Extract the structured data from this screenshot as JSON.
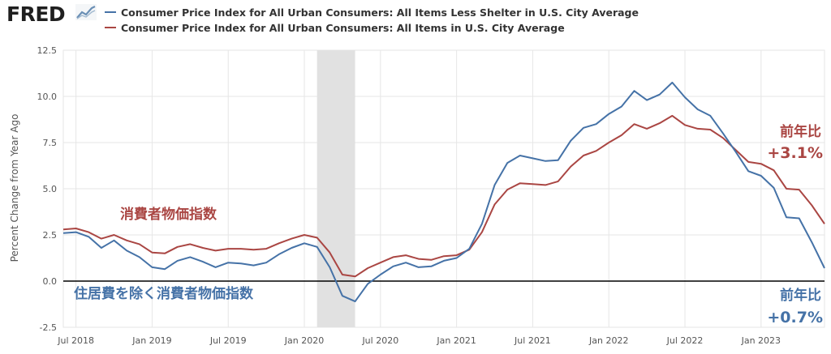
{
  "header": {
    "logo_text": "FRED",
    "logo_icon": "fred-chart-icon"
  },
  "colors": {
    "series_blue": "#4572a7",
    "series_red": "#aa4643",
    "recession": "#e1e1e1",
    "zero_line": "#000000",
    "grid": "#e6e6e6"
  },
  "chart_data": {
    "type": "line",
    "ylabel": "Percent Change from Year Ago",
    "ylim": [
      -2.5,
      12.5
    ],
    "yticks": [
      12.5,
      10.0,
      7.5,
      5.0,
      2.5,
      0.0,
      -2.5
    ],
    "ytick_labels": [
      "12.5",
      "10.0",
      "7.5",
      "5.0",
      "2.5",
      "0.0",
      "-2.5"
    ],
    "xlim": [
      "2018-06",
      "2023-06"
    ],
    "xticks": [
      "2018-07",
      "2019-01",
      "2019-07",
      "2020-01",
      "2020-07",
      "2021-01",
      "2021-07",
      "2022-01",
      "2022-07",
      "2023-01"
    ],
    "xtick_labels": [
      "Jul 2018",
      "Jan 2019",
      "Jul 2019",
      "Jan 2020",
      "Jul 2020",
      "Jan 2021",
      "Jul 2021",
      "Jan 2022",
      "Jul 2022",
      "Jan 2023"
    ],
    "grid": true,
    "legend_position": "top",
    "recession_shading": [
      {
        "start": "2020-02",
        "end": "2020-04"
      }
    ],
    "x": [
      "2018-06",
      "2018-07",
      "2018-08",
      "2018-09",
      "2018-10",
      "2018-11",
      "2018-12",
      "2019-01",
      "2019-02",
      "2019-03",
      "2019-04",
      "2019-05",
      "2019-06",
      "2019-07",
      "2019-08",
      "2019-09",
      "2019-10",
      "2019-11",
      "2019-12",
      "2020-01",
      "2020-02",
      "2020-03",
      "2020-04",
      "2020-05",
      "2020-06",
      "2020-07",
      "2020-08",
      "2020-09",
      "2020-10",
      "2020-11",
      "2020-12",
      "2021-01",
      "2021-02",
      "2021-03",
      "2021-04",
      "2021-05",
      "2021-06",
      "2021-07",
      "2021-08",
      "2021-09",
      "2021-10",
      "2021-11",
      "2021-12",
      "2022-01",
      "2022-02",
      "2022-03",
      "2022-04",
      "2022-05",
      "2022-06",
      "2022-07",
      "2022-08",
      "2022-09",
      "2022-10",
      "2022-11",
      "2022-12",
      "2023-01",
      "2023-02",
      "2023-03",
      "2023-04",
      "2023-05",
      "2023-06"
    ],
    "series": [
      {
        "name": "Consumer Price Index for All Urban Consumers: All Items Less Shelter in U.S. City Average",
        "color": "#4572a7",
        "values": [
          2.6,
          2.65,
          2.4,
          1.8,
          2.2,
          1.65,
          1.3,
          0.75,
          0.65,
          1.1,
          1.3,
          1.05,
          0.75,
          1.0,
          0.95,
          0.85,
          1.0,
          1.45,
          1.8,
          2.05,
          1.85,
          0.75,
          -0.8,
          -1.1,
          -0.15,
          0.35,
          0.8,
          1.0,
          0.75,
          0.8,
          1.1,
          1.25,
          1.75,
          3.1,
          5.2,
          6.4,
          6.8,
          6.65,
          6.5,
          6.55,
          7.6,
          8.3,
          8.5,
          9.05,
          9.45,
          10.3,
          9.8,
          10.1,
          10.75,
          9.95,
          9.3,
          8.95,
          8.0,
          7.0,
          5.95,
          5.7,
          5.05,
          3.45,
          3.4,
          2.1,
          0.7
        ]
      },
      {
        "name": "Consumer Price Index for All Urban Consumers: All Items in U.S. City Average",
        "color": "#aa4643",
        "values": [
          2.8,
          2.85,
          2.65,
          2.3,
          2.5,
          2.2,
          2.0,
          1.55,
          1.5,
          1.85,
          2.0,
          1.8,
          1.65,
          1.75,
          1.75,
          1.7,
          1.75,
          2.05,
          2.3,
          2.5,
          2.35,
          1.55,
          0.35,
          0.25,
          0.7,
          1.0,
          1.3,
          1.4,
          1.2,
          1.15,
          1.35,
          1.4,
          1.7,
          2.65,
          4.15,
          4.95,
          5.3,
          5.25,
          5.2,
          5.4,
          6.2,
          6.8,
          7.05,
          7.5,
          7.9,
          8.5,
          8.25,
          8.55,
          8.95,
          8.45,
          8.25,
          8.2,
          7.75,
          7.1,
          6.45,
          6.35,
          6.0,
          5.0,
          4.95,
          4.1,
          3.1
        ]
      }
    ],
    "annotations": [
      {
        "text": "消費者物価指数",
        "color": "#aa4643"
      },
      {
        "text": "住居費を除く消費者物価指数",
        "color": "#4572a7"
      },
      {
        "text": "前年比",
        "color": "#aa4643"
      },
      {
        "text": "+3.1%",
        "color": "#aa4643"
      },
      {
        "text": "前年比",
        "color": "#4572a7"
      },
      {
        "text": "+0.7%",
        "color": "#4572a7"
      }
    ]
  }
}
